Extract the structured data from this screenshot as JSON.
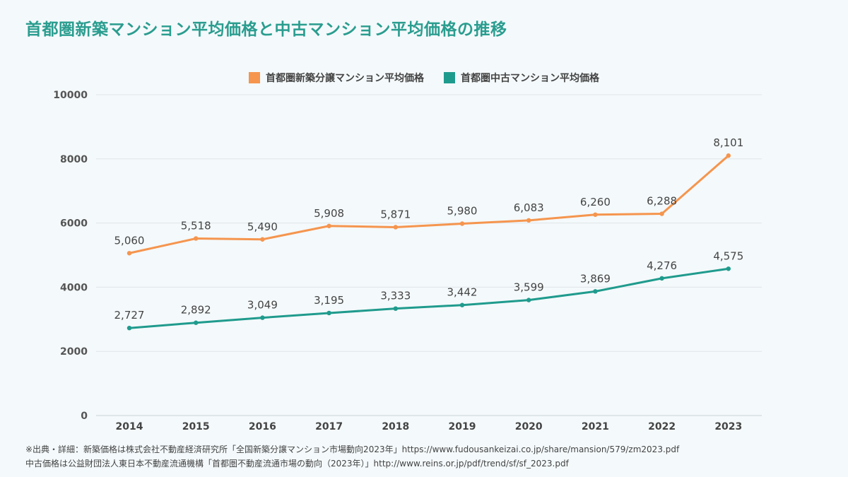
{
  "title": "首都圏新築マンション平均価格と中古マンション平均価格の推移",
  "colors": {
    "new": "#f5954e",
    "used": "#1f9b8d",
    "title": "#2a9d8f",
    "grid": "#dfe6ea"
  },
  "chart_data": {
    "type": "line",
    "x": [
      "2014",
      "2015",
      "2016",
      "2017",
      "2018",
      "2019",
      "2020",
      "2021",
      "2022",
      "2023"
    ],
    "series": [
      {
        "name": "首都圏新築分譲マンション平均価格",
        "color": "#f5954e",
        "values": [
          5060,
          5518,
          5490,
          5908,
          5871,
          5980,
          6083,
          6260,
          6288,
          8101
        ],
        "labels": [
          "5,060",
          "5,518",
          "5,490",
          "5,908",
          "5,871",
          "5,980",
          "6,083",
          "6,260",
          "6,288",
          "8,101"
        ]
      },
      {
        "name": "首都圏中古マンション平均価格",
        "color": "#1f9b8d",
        "values": [
          2727,
          2892,
          3049,
          3195,
          3333,
          3442,
          3599,
          3869,
          4276,
          4575
        ],
        "labels": [
          "2,727",
          "2,892",
          "3,049",
          "3,195",
          "3,333",
          "3,442",
          "3,599",
          "3,869",
          "4,276",
          "4,575"
        ]
      }
    ],
    "ylim": [
      0,
      10000
    ],
    "yticks": [
      "0",
      "2000",
      "4000",
      "6000",
      "8000",
      "10000"
    ],
    "grid": true,
    "legend": "top-center"
  },
  "footnotes": [
    "※出典・詳細：新築価格は株式会社不動産経済研究所「全国新築分譲マンション市場動向2023年」https://www.fudousankeizai.co.jp/share/mansion/579/zm2023.pdf",
    "中古価格は公益財団法人東日本不動産流通機構「首都圏不動産流通市場の動向（2023年）」http://www.reins.or.jp/pdf/trend/sf/sf_2023.pdf"
  ]
}
